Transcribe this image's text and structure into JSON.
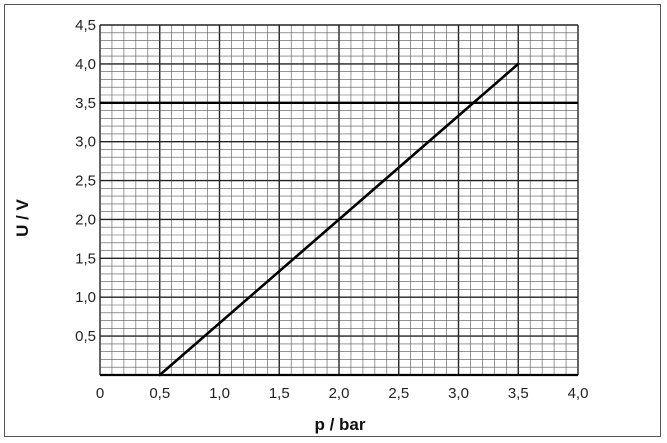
{
  "chart_data": {
    "type": "line",
    "title": "",
    "xlabel": "p / bar",
    "ylabel": "U / V",
    "xlim": [
      0,
      4.0
    ],
    "ylim": [
      0,
      4.5
    ],
    "x_ticks": [
      "0",
      "0,5",
      "1,0",
      "1,5",
      "2,0",
      "2,5",
      "3,0",
      "3,5",
      "4,0"
    ],
    "y_ticks": [
      "0,5",
      "1,0",
      "1,5",
      "2,0",
      "2,5",
      "3,0",
      "3,5",
      "4,0",
      "4,5"
    ],
    "minor_step": 0.1,
    "major_step": 0.5,
    "grid": true,
    "reference_line_y": 3.5,
    "series": [
      {
        "x": [
          0.5,
          3.5
        ],
        "y": [
          0.0,
          4.0
        ]
      }
    ],
    "colors": {
      "line": "#000000",
      "major_grid": "#222222",
      "minor_grid": "#555555"
    }
  }
}
